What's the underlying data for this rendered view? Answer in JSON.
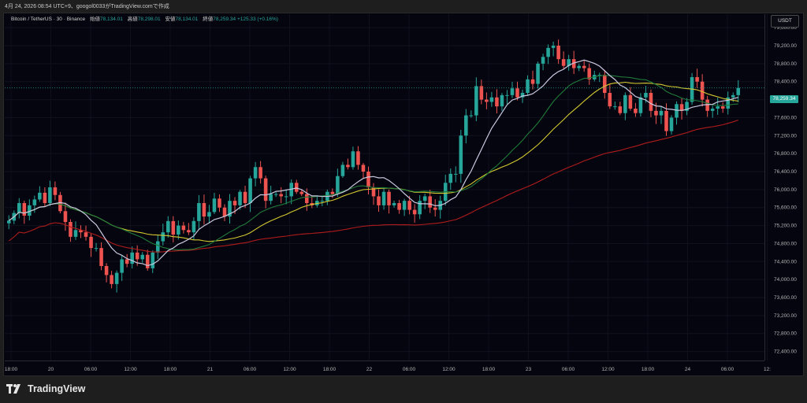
{
  "caption": "4月 24, 2026 08:54 UTC+9、googol0033がTradingView.comで作成",
  "legend": {
    "symbol": "Bitcoin / TetherUS · 30 · Binance",
    "open_label": "始値",
    "open": "78,134.01",
    "high_label": "高値",
    "high": "78,298.01",
    "low_label": "安値",
    "low": "78,134.01",
    "close_label": "終値",
    "close": "78,259.34",
    "change": "+125.33 (+0.16%)"
  },
  "currency": "USDT",
  "last_price": "78,259.34",
  "brand": "TradingView",
  "colors": {
    "background": "#05050f",
    "up": "#26a69a",
    "down": "#ef5350",
    "ma_fast": "#c9c9e0",
    "ma_mid": "#1f7a3a",
    "ma_slow": "#d4c930",
    "ma_long": "#b01c1c"
  },
  "chart_data": {
    "type": "candlestick",
    "y_ticks": [
      "79,600.00",
      "79,200.00",
      "78,800.00",
      "78,400.00",
      "78,000.00",
      "77,600.00",
      "77,200.00",
      "76,800.00",
      "76,400.00",
      "76,000.00",
      "75,600.00",
      "75,200.00",
      "74,800.00",
      "74,400.00",
      "74,000.00",
      "73,600.00",
      "73,200.00",
      "72,800.00",
      "72,400.00"
    ],
    "ylim": [
      72200,
      79900
    ],
    "x_ticks": [
      "18:00",
      "20",
      "06:00",
      "12:00",
      "18:00",
      "21",
      "06:00",
      "12:00",
      "18:00",
      "22",
      "06:00",
      "12:00",
      "18:00",
      "23",
      "06:00",
      "12:00",
      "18:00",
      "24",
      "06:00",
      "12:"
    ],
    "closes": [
      75310,
      75480,
      75700,
      75420,
      75650,
      75780,
      75930,
      75700,
      76050,
      75880,
      75520,
      75280,
      74950,
      75100,
      75050,
      74950,
      74700,
      74700,
      74300,
      74100,
      73900,
      74150,
      74450,
      74350,
      74600,
      74450,
      74550,
      74250,
      74600,
      74850,
      75050,
      75300,
      75000,
      75200,
      75100,
      75050,
      75300,
      75700,
      75400,
      75500,
      75800,
      75600,
      75400,
      75750,
      75650,
      75950,
      75700,
      76250,
      76500,
      76250,
      75750,
      75900,
      75900,
      75850,
      75850,
      76150,
      75950,
      75900,
      75700,
      75650,
      75750,
      75750,
      75950,
      75900,
      76300,
      76550,
      76500,
      76850,
      76550,
      76400,
      76050,
      75850,
      75650,
      75950,
      75650,
      75700,
      75550,
      75750,
      75550,
      75450,
      75750,
      75850,
      75600,
      75550,
      75750,
      76150,
      76350,
      76350,
      77200,
      77650,
      77650,
      78300,
      78000,
      77950,
      78050,
      77850,
      78100,
      78100,
      78250,
      78050,
      78150,
      78450,
      78350,
      78800,
      78950,
      79150,
      79200,
      78900,
      78750,
      78900,
      78700,
      78750,
      78700,
      78450,
      78550,
      78550,
      78150,
      77850,
      77850,
      77700,
      78100,
      77800,
      77700,
      78050,
      78150,
      77750,
      77650,
      77750,
      77300,
      77600,
      77900,
      77750,
      77950,
      78500,
      78400,
      78000,
      77750,
      77800,
      77850,
      77800,
      78050,
      78100,
      78260
    ],
    "series": [
      {
        "name": "",
        "values": []
      }
    ],
    "grid": true
  }
}
